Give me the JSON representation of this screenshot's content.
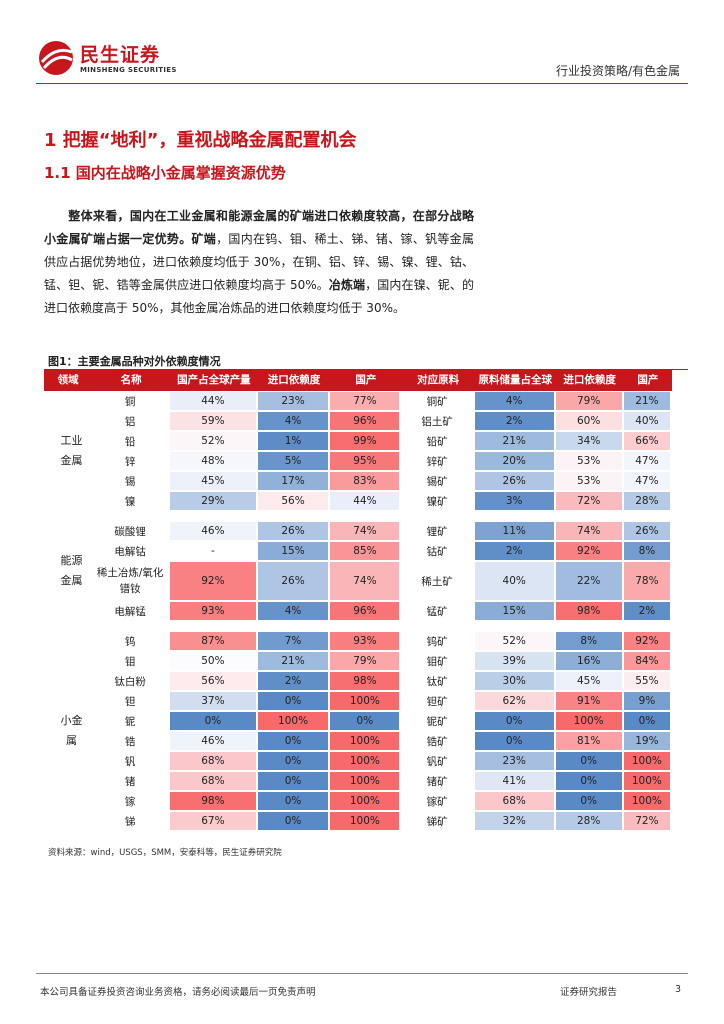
{
  "header": {
    "brand_cn": "民生证券",
    "brand_en": "MINSHENG SECURITIES",
    "report_type": "行业投资策略/有色金属"
  },
  "section": {
    "h1": "1 把握“地利”，重视战略金属配置机会",
    "h2": "1.1 国内在战略小金属掌握资源优势"
  },
  "paragraph": [
    {
      "bold": true,
      "text": "整体来看，国内在工业金属和能源金属的矿端进口依赖度较高，在部分战略小金属矿端占据一定优势。"
    },
    {
      "bold": true,
      "text": "矿端"
    },
    {
      "bold": false,
      "text": "，国内在钨、钼、稀土、锑、锗、镓、钒等金属供应占据优势地位，进口依赖度均低于 30%，在铜、铝、锌、锡、镍、锂、钴、锰、钽、铌、锆等金属供应进口依赖度均高于 50%。"
    },
    {
      "bold": true,
      "text": "冶炼端"
    },
    {
      "bold": false,
      "text": "，国内在镍、铌、的进口依赖度高于 50%，其他金属冶炼品的进口依赖度均低于 30%。"
    }
  ],
  "figure": {
    "title": "图1：主要金属品种对外依赖度情况",
    "columns": [
      "领域",
      "名称",
      "国产占全球产量",
      "进口依赖度",
      "国产",
      "对应原料",
      "原料储量占全球",
      "进口依赖度",
      "国产"
    ],
    "groups": [
      {
        "name": "工业金属",
        "rows": [
          [
            "铜",
            "44%",
            "23%",
            "77%",
            "铜矿",
            "4%",
            "79%",
            "21%"
          ],
          [
            "铝",
            "59%",
            "4%",
            "96%",
            "铝土矿",
            "2%",
            "60%",
            "40%"
          ],
          [
            "铅",
            "52%",
            "1%",
            "99%",
            "铅矿",
            "21%",
            "34%",
            "66%"
          ],
          [
            "锌",
            "48%",
            "5%",
            "95%",
            "锌矿",
            "20%",
            "53%",
            "47%"
          ],
          [
            "锡",
            "45%",
            "17%",
            "83%",
            "锡矿",
            "26%",
            "53%",
            "47%"
          ],
          [
            "镍",
            "29%",
            "56%",
            "44%",
            "镍矿",
            "3%",
            "72%",
            "28%"
          ]
        ]
      },
      {
        "name": "能源金属",
        "rows": [
          [
            "碳酸锂",
            "46%",
            "26%",
            "74%",
            "锂矿",
            "11%",
            "74%",
            "26%"
          ],
          [
            "电解钴",
            "-",
            "15%",
            "85%",
            "钴矿",
            "2%",
            "92%",
            "8%"
          ],
          [
            "稀土冶炼/氧化镨钕",
            "92%",
            "26%",
            "74%",
            "稀土矿",
            "40%",
            "22%",
            "78%"
          ],
          [
            "电解锰",
            "93%",
            "4%",
            "96%",
            "锰矿",
            "15%",
            "98%",
            "2%"
          ]
        ]
      },
      {
        "name": "小金属",
        "rows": [
          [
            "钨",
            "87%",
            "7%",
            "93%",
            "钨矿",
            "52%",
            "8%",
            "92%"
          ],
          [
            "钼",
            "50%",
            "21%",
            "79%",
            "钼矿",
            "39%",
            "16%",
            "84%"
          ],
          [
            "钛白粉",
            "56%",
            "2%",
            "98%",
            "钛矿",
            "30%",
            "45%",
            "55%"
          ],
          [
            "钽",
            "37%",
            "0%",
            "100%",
            "钽矿",
            "62%",
            "91%",
            "9%"
          ],
          [
            "铌",
            "0%",
            "100%",
            "0%",
            "铌矿",
            "0%",
            "100%",
            "0%"
          ],
          [
            "锆",
            "46%",
            "0%",
            "100%",
            "锆矿",
            "0%",
            "81%",
            "19%"
          ],
          [
            "钒",
            "68%",
            "0%",
            "100%",
            "钒矿",
            "23%",
            "0%",
            "100%"
          ],
          [
            "锗",
            "68%",
            "0%",
            "100%",
            "锗矿",
            "41%",
            "0%",
            "100%"
          ],
          [
            "镓",
            "98%",
            "0%",
            "100%",
            "镓矿",
            "68%",
            "0%",
            "100%"
          ],
          [
            "锑",
            "67%",
            "0%",
            "100%",
            "锑矿",
            "32%",
            "28%",
            "72%"
          ]
        ]
      }
    ],
    "source": "资料来源：wind，USGS，SMM，安泰科等，民生证券研究院"
  },
  "footer": {
    "disclaimer": "本公司具备证券投资咨询业务资格，请务必阅读最后一页免责声明",
    "report_label": "证券研究报告",
    "page": "3"
  },
  "colors": {
    "accent": "#c8161d",
    "heat_red": "#f8696b",
    "heat_blue": "#5a8ac6",
    "heat_white": "#fcfcff"
  }
}
